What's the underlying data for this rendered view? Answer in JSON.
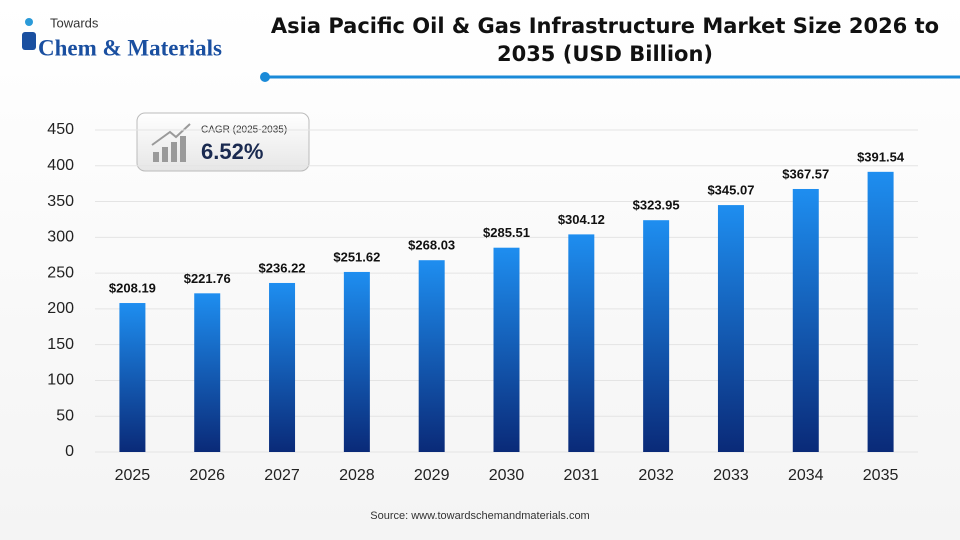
{
  "logo": {
    "line1": "Towards",
    "line2": "Chem & Materials"
  },
  "chart_data": {
    "type": "bar",
    "title": "Asia Pacific Oil & Gas Infrastructure Market Size 2026 to 2035 (USD Billion)",
    "categories": [
      "2025",
      "2026",
      "2027",
      "2028",
      "2029",
      "2030",
      "2031",
      "2032",
      "2033",
      "2034",
      "2035"
    ],
    "values": [
      208.19,
      221.76,
      236.22,
      251.62,
      268.03,
      285.51,
      304.12,
      323.95,
      345.07,
      367.57,
      391.54
    ],
    "value_labels": [
      "$208.19",
      "$221.76",
      "$236.22",
      "$251.62",
      "$268.03",
      "$285.51",
      "$304.12",
      "$323.95",
      "$345.07",
      "$367.57",
      "$391.54"
    ],
    "color": "#1e8ef0",
    "ylim": [
      0,
      450
    ],
    "yticks": [
      0,
      50,
      100,
      150,
      200,
      250,
      300,
      350,
      400,
      450
    ],
    "grid": true,
    "annotations": [
      "CAGR (2025-2035)",
      "6.52%"
    ],
    "source": "Source: www.towardschemandmaterials.com"
  }
}
